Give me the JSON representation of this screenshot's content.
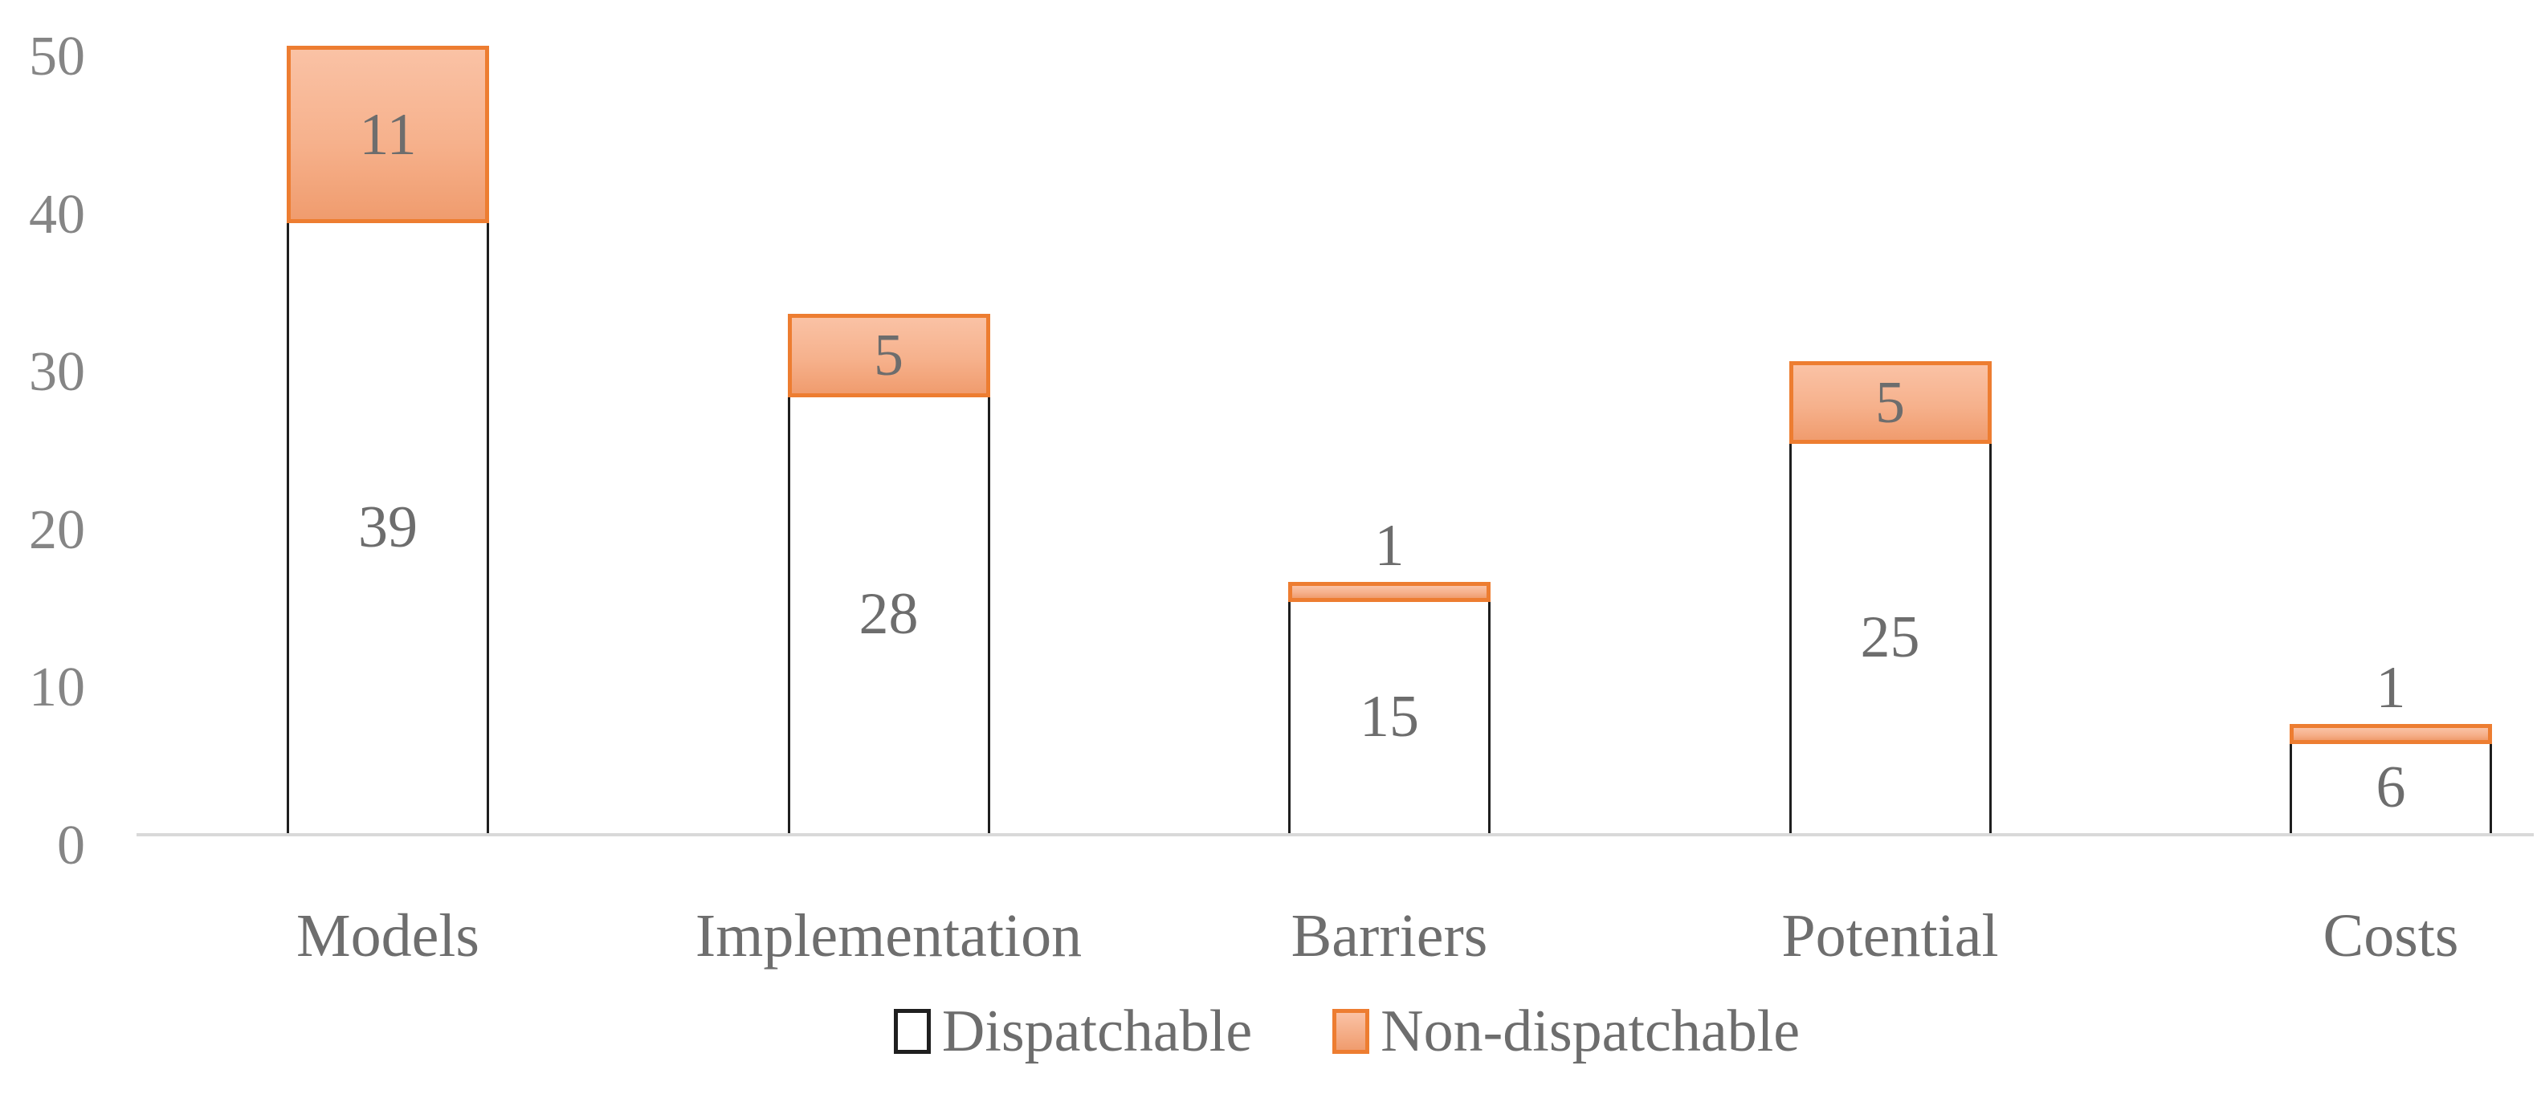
{
  "chart_data": {
    "type": "bar",
    "stacked": true,
    "title": "",
    "xlabel": "",
    "ylabel": "",
    "categories": [
      "Models",
      "Implementation",
      "Barriers",
      "Potential",
      "Costs"
    ],
    "series": [
      {
        "name": "Dispatchable",
        "values": [
          39,
          28,
          15,
          25,
          6
        ]
      },
      {
        "name": "Non-dispatchable",
        "values": [
          11,
          5,
          1,
          5,
          1
        ]
      }
    ],
    "totals": [
      50,
      33,
      16,
      30,
      7
    ],
    "yticks": [
      0,
      10,
      20,
      30,
      40,
      50
    ],
    "ylim": [
      0,
      50
    ],
    "grid": false,
    "data_labels": true,
    "legend_position": "bottom"
  },
  "colors": {
    "dispatchable_fill": "#ffffff",
    "dispatchable_border": "#1f1f1f",
    "nondispatchable_fill_top": "#fac2a5",
    "nondispatchable_fill_bottom": "#f09c6e",
    "nondispatchable_border": "#ed7d31",
    "axis_line": "#d9d9d9",
    "tick_text": "#858585",
    "label_text": "#6d6d6d",
    "category_text": "#6e6e6e",
    "background": "#ffffff"
  }
}
